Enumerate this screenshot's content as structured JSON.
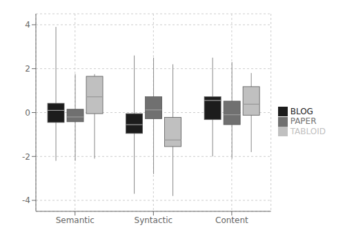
{
  "chart_data": {
    "type": "box",
    "categories": [
      "Semantic",
      "Syntactic",
      "Content"
    ],
    "series": [
      {
        "name": "BLOG",
        "color": "#1c1c1c",
        "values": [
          {
            "whislo": -2.2,
            "q1": -0.45,
            "med": 0.1,
            "q3": 0.42,
            "whishi": 3.9
          },
          {
            "whislo": -3.7,
            "q1": -0.95,
            "med": -0.55,
            "q3": -0.05,
            "whishi": 2.6
          },
          {
            "whislo": -2.0,
            "q1": -0.32,
            "med": 0.55,
            "q3": 0.72,
            "whishi": 2.5
          }
        ]
      },
      {
        "name": "PAPER",
        "color": "#707070",
        "values": [
          {
            "whislo": -2.2,
            "q1": -0.42,
            "med": -0.2,
            "q3": 0.15,
            "whishi": 1.75
          },
          {
            "whislo": -2.8,
            "q1": -0.28,
            "med": 0.12,
            "q3": 0.72,
            "whishi": 2.5
          },
          {
            "whislo": -2.1,
            "q1": -0.55,
            "med": -0.1,
            "q3": 0.52,
            "whishi": 2.3
          }
        ]
      },
      {
        "name": "TABLOID",
        "color": "#c0c0c0",
        "values": [
          {
            "whislo": -2.1,
            "q1": -0.05,
            "med": 0.72,
            "q3": 1.65,
            "whishi": 1.75
          },
          {
            "whislo": -3.8,
            "q1": -1.55,
            "med": -1.25,
            "q3": -0.22,
            "whishi": 2.2
          },
          {
            "whislo": -1.8,
            "q1": -0.12,
            "med": 0.38,
            "q3": 1.18,
            "whishi": 1.8
          }
        ]
      }
    ],
    "ylim": [
      -4.5,
      4.5
    ],
    "yticks": [
      -4,
      -2,
      0,
      2,
      4
    ],
    "grid": true,
    "legend": "right"
  }
}
